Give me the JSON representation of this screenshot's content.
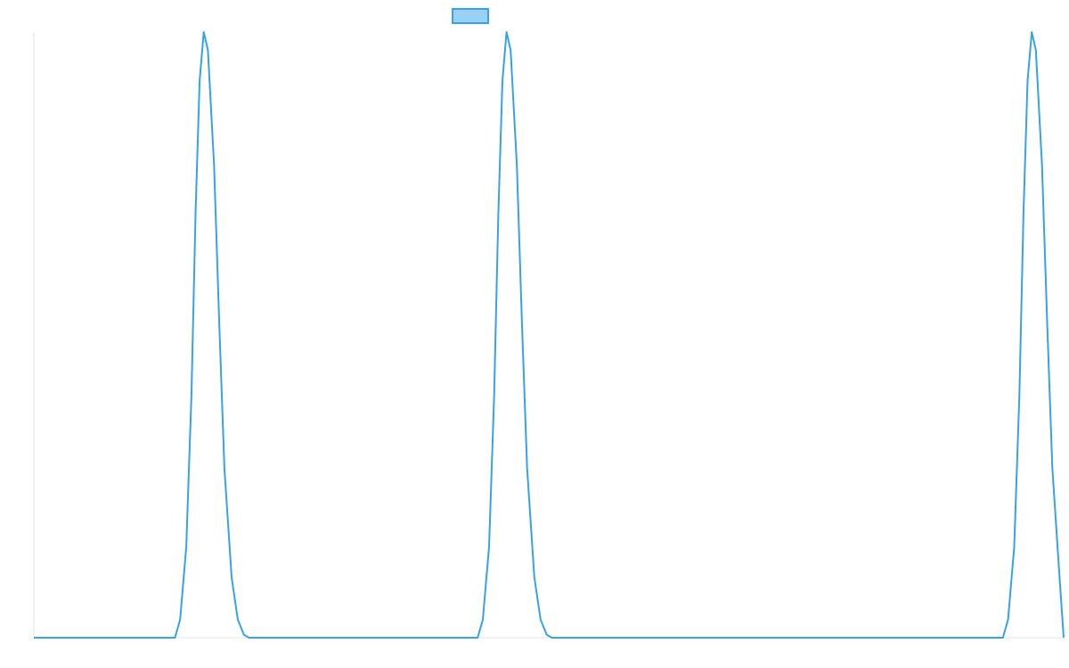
{
  "chart_data": {
    "type": "line",
    "title": "",
    "xlabel": "",
    "ylabel": "",
    "grid": false,
    "legend": "top-center",
    "xlim": [
      0,
      100
    ],
    "ylim": [
      0,
      1
    ],
    "series": [
      {
        "name": "",
        "color": "#36a2eb",
        "fill": "#9ad0f5",
        "x": [
          0,
          13.7,
          14.2,
          14.8,
          15.3,
          15.7,
          16.1,
          16.5,
          16.9,
          17.5,
          18.0,
          18.5,
          19.2,
          19.8,
          20.4,
          20.9,
          43.1,
          43.6,
          44.2,
          44.7,
          45.1,
          45.5,
          45.9,
          46.3,
          46.9,
          47.4,
          47.9,
          48.6,
          49.2,
          49.8,
          50.3,
          94.1,
          94.6,
          95.2,
          95.7,
          96.1,
          96.5,
          96.9,
          97.3,
          97.9,
          98.4,
          98.9,
          99.6,
          100
        ],
        "y": [
          0,
          0,
          0.03,
          0.15,
          0.4,
          0.7,
          0.92,
          1.0,
          0.97,
          0.78,
          0.52,
          0.28,
          0.1,
          0.03,
          0.005,
          0,
          0,
          0.03,
          0.15,
          0.4,
          0.7,
          0.92,
          1.0,
          0.97,
          0.78,
          0.52,
          0.28,
          0.1,
          0.03,
          0.005,
          0,
          0,
          0.03,
          0.15,
          0.4,
          0.7,
          0.92,
          1.0,
          0.97,
          0.78,
          0.52,
          0.28,
          0.1,
          0
        ]
      }
    ]
  }
}
